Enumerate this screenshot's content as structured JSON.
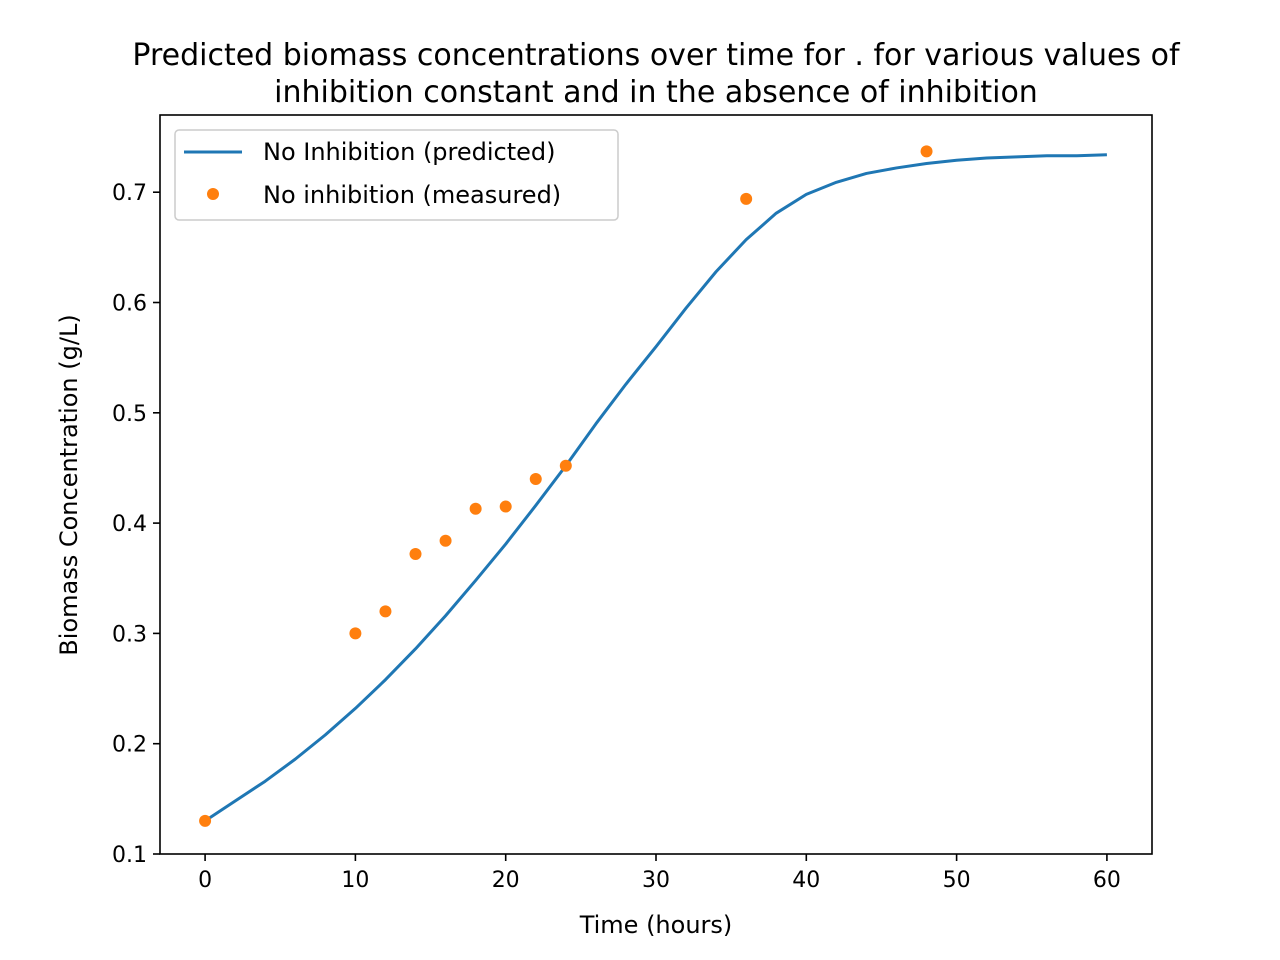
{
  "chart_data": {
    "type": "line",
    "title_lines": [
      "Predicted biomass concentrations over time for . for various values of",
      "inhibition constant and in the absence of inhibition"
    ],
    "xlabel": "Time (hours)",
    "ylabel": "Biomass Concentration (g/L)",
    "xlim": [
      -3,
      63
    ],
    "ylim": [
      0.1,
      0.77
    ],
    "x_ticks": [
      0,
      10,
      20,
      30,
      40,
      50,
      60
    ],
    "x_tick_labels": [
      "0",
      "10",
      "20",
      "30",
      "40",
      "50",
      "60"
    ],
    "y_ticks": [
      0.1,
      0.2,
      0.3,
      0.4,
      0.5,
      0.6,
      0.7
    ],
    "y_tick_labels": [
      "0.1",
      "0.2",
      "0.3",
      "0.4",
      "0.5",
      "0.6",
      "0.7"
    ],
    "grid": false,
    "legend_position": "top-left",
    "series": [
      {
        "name": "No Inhibition (predicted)",
        "kind": "line",
        "color": "#1f77b4",
        "x": [
          0,
          2,
          4,
          6,
          8,
          10,
          12,
          14,
          16,
          18,
          20,
          22,
          24,
          26,
          28,
          30,
          32,
          34,
          36,
          38,
          40,
          42,
          44,
          46,
          48,
          50,
          52,
          54,
          56,
          58,
          60
        ],
        "y": [
          0.13,
          0.148,
          0.166,
          0.186,
          0.208,
          0.232,
          0.258,
          0.286,
          0.316,
          0.348,
          0.381,
          0.416,
          0.452,
          0.49,
          0.526,
          0.56,
          0.595,
          0.628,
          0.657,
          0.681,
          0.698,
          0.709,
          0.717,
          0.722,
          0.726,
          0.729,
          0.731,
          0.732,
          0.733,
          0.733,
          0.734
        ]
      },
      {
        "name": "No inhibition (measured)",
        "kind": "scatter",
        "color": "#ff7f0e",
        "x": [
          0,
          10,
          12,
          14,
          16,
          18,
          20,
          22,
          24,
          36,
          48
        ],
        "y": [
          0.13,
          0.3,
          0.32,
          0.372,
          0.384,
          0.413,
          0.415,
          0.44,
          0.452,
          0.694,
          0.737
        ]
      }
    ]
  }
}
